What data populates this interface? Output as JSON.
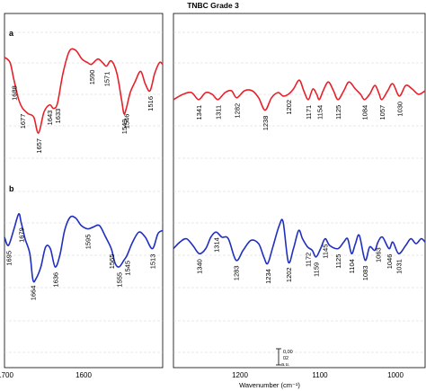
{
  "chart_data": {
    "type": "line",
    "title": "TNBC Grade 3",
    "xlabel": "Wavenumber (cm⁻¹)",
    "grid": "horizontal dashed",
    "scale_bar": {
      "value": "0,00",
      "value2": "02",
      "unit": "a.u."
    },
    "x_ticks_left": [
      "1700",
      "1600"
    ],
    "x_ticks_right": [
      "1200",
      "1100",
      "1000"
    ],
    "x_range_left": [
      1700,
      1500
    ],
    "x_range_right": [
      1380,
      990
    ],
    "panels": [
      {
        "label": "a",
        "color": "#e8202a",
        "left_points": [
          [
            1700,
            0.88
          ],
          [
            1693,
            0.82
          ],
          [
            1688,
            0.62
          ],
          [
            1682,
            0.4
          ],
          [
            1677,
            0.3
          ],
          [
            1670,
            0.24
          ],
          [
            1663,
            0.2
          ],
          [
            1657,
            0.02
          ],
          [
            1650,
            0.26
          ],
          [
            1643,
            0.34
          ],
          [
            1638,
            0.3
          ],
          [
            1633,
            0.36
          ],
          [
            1626,
            0.7
          ],
          [
            1618,
            0.95
          ],
          [
            1610,
            0.96
          ],
          [
            1602,
            0.86
          ],
          [
            1595,
            0.82
          ],
          [
            1590,
            0.8
          ],
          [
            1582,
            0.86
          ],
          [
            1576,
            0.82
          ],
          [
            1571,
            0.78
          ],
          [
            1565,
            0.84
          ],
          [
            1558,
            0.7
          ],
          [
            1552,
            0.4
          ],
          [
            1549,
            0.24
          ],
          [
            1546,
            0.3
          ],
          [
            1541,
            0.48
          ],
          [
            1535,
            0.6
          ],
          [
            1528,
            0.72
          ],
          [
            1522,
            0.58
          ],
          [
            1516,
            0.5
          ],
          [
            1510,
            0.7
          ],
          [
            1504,
            0.82
          ],
          [
            1500,
            0.8
          ]
        ],
        "right_points": [
          [
            1380,
            0.4
          ],
          [
            1365,
            0.46
          ],
          [
            1352,
            0.48
          ],
          [
            1341,
            0.4
          ],
          [
            1330,
            0.48
          ],
          [
            1320,
            0.46
          ],
          [
            1311,
            0.4
          ],
          [
            1300,
            0.48
          ],
          [
            1290,
            0.5
          ],
          [
            1282,
            0.42
          ],
          [
            1270,
            0.5
          ],
          [
            1258,
            0.5
          ],
          [
            1248,
            0.42
          ],
          [
            1238,
            0.28
          ],
          [
            1228,
            0.42
          ],
          [
            1218,
            0.48
          ],
          [
            1210,
            0.44
          ],
          [
            1202,
            0.46
          ],
          [
            1194,
            0.52
          ],
          [
            1185,
            0.62
          ],
          [
            1178,
            0.5
          ],
          [
            1171,
            0.4
          ],
          [
            1164,
            0.52
          ],
          [
            1158,
            0.46
          ],
          [
            1154,
            0.4
          ],
          [
            1148,
            0.5
          ],
          [
            1140,
            0.6
          ],
          [
            1132,
            0.5
          ],
          [
            1125,
            0.4
          ],
          [
            1116,
            0.5
          ],
          [
            1108,
            0.6
          ],
          [
            1098,
            0.52
          ],
          [
            1090,
            0.46
          ],
          [
            1084,
            0.4
          ],
          [
            1076,
            0.46
          ],
          [
            1068,
            0.56
          ],
          [
            1062,
            0.48
          ],
          [
            1057,
            0.4
          ],
          [
            1048,
            0.5
          ],
          [
            1040,
            0.58
          ],
          [
            1030,
            0.44
          ],
          [
            1020,
            0.56
          ],
          [
            1010,
            0.52
          ],
          [
            1000,
            0.46
          ],
          [
            990,
            0.5
          ]
        ],
        "peaks_left": [
          {
            "label": "1688",
            "x": 1688,
            "text_side": "below",
            "offset": 4
          },
          {
            "label": "1677",
            "x": 1677,
            "text_side": "below",
            "offset": 4
          },
          {
            "label": "1657",
            "x": 1657,
            "text_side": "below",
            "offset": 4
          },
          {
            "label": "1643",
            "x": 1643,
            "text_side": "below",
            "offset": 4
          },
          {
            "label": "1633",
            "x": 1633,
            "text_side": "below",
            "offset": 4
          },
          {
            "label": "1590",
            "x": 1590,
            "text_side": "below",
            "offset": 4
          },
          {
            "label": "1571",
            "x": 1571,
            "text_side": "below",
            "offset": 4
          },
          {
            "label": "1549",
            "x": 1549,
            "text_side": "below",
            "offset": 4
          },
          {
            "label": "1546",
            "x": 1546,
            "text_side": "below",
            "offset": 4
          },
          {
            "label": "1516",
            "x": 1516,
            "text_side": "below",
            "offset": 4
          }
        ],
        "peaks_right": [
          {
            "label": "1341",
            "x": 1341
          },
          {
            "label": "1311",
            "x": 1311
          },
          {
            "label": "1282",
            "x": 1282
          },
          {
            "label": "1238",
            "x": 1238
          },
          {
            "label": "1202",
            "x": 1202
          },
          {
            "label": "1171",
            "x": 1171
          },
          {
            "label": "1154",
            "x": 1154
          },
          {
            "label": "1125",
            "x": 1125
          },
          {
            "label": "1084",
            "x": 1084
          },
          {
            "label": "1057",
            "x": 1057
          },
          {
            "label": "1030",
            "x": 1030
          }
        ]
      },
      {
        "label": "b",
        "color": "#1f2fbf",
        "left_points": [
          [
            1700,
            0.72
          ],
          [
            1695,
            0.62
          ],
          [
            1688,
            0.82
          ],
          [
            1682,
            1.0
          ],
          [
            1679,
            0.9
          ],
          [
            1674,
            0.7
          ],
          [
            1668,
            0.52
          ],
          [
            1664,
            0.2
          ],
          [
            1660,
            0.22
          ],
          [
            1654,
            0.36
          ],
          [
            1648,
            0.6
          ],
          [
            1642,
            0.58
          ],
          [
            1636,
            0.36
          ],
          [
            1630,
            0.5
          ],
          [
            1624,
            0.8
          ],
          [
            1617,
            0.96
          ],
          [
            1610,
            0.95
          ],
          [
            1603,
            0.86
          ],
          [
            1595,
            0.82
          ],
          [
            1588,
            0.84
          ],
          [
            1580,
            0.86
          ],
          [
            1572,
            0.72
          ],
          [
            1565,
            0.58
          ],
          [
            1560,
            0.4
          ],
          [
            1555,
            0.36
          ],
          [
            1549,
            0.44
          ],
          [
            1545,
            0.5
          ],
          [
            1538,
            0.66
          ],
          [
            1530,
            0.78
          ],
          [
            1522,
            0.72
          ],
          [
            1513,
            0.58
          ],
          [
            1506,
            0.76
          ],
          [
            1500,
            0.8
          ]
        ],
        "right_points": [
          [
            1380,
            0.58
          ],
          [
            1370,
            0.66
          ],
          [
            1360,
            0.7
          ],
          [
            1350,
            0.62
          ],
          [
            1340,
            0.52
          ],
          [
            1330,
            0.58
          ],
          [
            1322,
            0.72
          ],
          [
            1314,
            0.78
          ],
          [
            1305,
            0.72
          ],
          [
            1295,
            0.7
          ],
          [
            1283,
            0.44
          ],
          [
            1272,
            0.56
          ],
          [
            1260,
            0.68
          ],
          [
            1248,
            0.64
          ],
          [
            1240,
            0.48
          ],
          [
            1234,
            0.4
          ],
          [
            1226,
            0.6
          ],
          [
            1216,
            0.86
          ],
          [
            1210,
            0.9
          ],
          [
            1202,
            0.42
          ],
          [
            1194,
            0.58
          ],
          [
            1186,
            0.8
          ],
          [
            1180,
            0.7
          ],
          [
            1172,
            0.6
          ],
          [
            1165,
            0.56
          ],
          [
            1159,
            0.48
          ],
          [
            1152,
            0.58
          ],
          [
            1145,
            0.7
          ],
          [
            1138,
            0.62
          ],
          [
            1125,
            0.58
          ],
          [
            1116,
            0.66
          ],
          [
            1110,
            0.7
          ],
          [
            1104,
            0.52
          ],
          [
            1098,
            0.64
          ],
          [
            1092,
            0.74
          ],
          [
            1083,
            0.44
          ],
          [
            1076,
            0.6
          ],
          [
            1068,
            0.56
          ],
          [
            1063,
            0.66
          ],
          [
            1056,
            0.72
          ],
          [
            1046,
            0.58
          ],
          [
            1040,
            0.66
          ],
          [
            1031,
            0.52
          ],
          [
            1020,
            0.62
          ],
          [
            1012,
            0.7
          ],
          [
            1004,
            0.64
          ],
          [
            996,
            0.7
          ],
          [
            990,
            0.66
          ]
        ],
        "peaks_left": [
          {
            "label": "1695",
            "x": 1695
          },
          {
            "label": "1679",
            "x": 1679
          },
          {
            "label": "1664",
            "x": 1664
          },
          {
            "label": "1636",
            "x": 1636
          },
          {
            "label": "1595",
            "x": 1595
          },
          {
            "label": "1565",
            "x": 1565
          },
          {
            "label": "1555",
            "x": 1555
          },
          {
            "label": "1545",
            "x": 1545
          },
          {
            "label": "1513",
            "x": 1513
          }
        ],
        "peaks_right": [
          {
            "label": "1340",
            "x": 1340
          },
          {
            "label": "1314",
            "x": 1314
          },
          {
            "label": "1283",
            "x": 1283
          },
          {
            "label": "1234",
            "x": 1234
          },
          {
            "label": "1202",
            "x": 1202
          },
          {
            "label": "1172",
            "x": 1172
          },
          {
            "label": "1159",
            "x": 1159
          },
          {
            "label": "1145",
            "x": 1145
          },
          {
            "label": "1125",
            "x": 1125
          },
          {
            "label": "1104",
            "x": 1104
          },
          {
            "label": "1083",
            "x": 1083
          },
          {
            "label": "1063",
            "x": 1063
          },
          {
            "label": "1046",
            "x": 1046
          },
          {
            "label": "1031",
            "x": 1031
          }
        ]
      }
    ]
  }
}
